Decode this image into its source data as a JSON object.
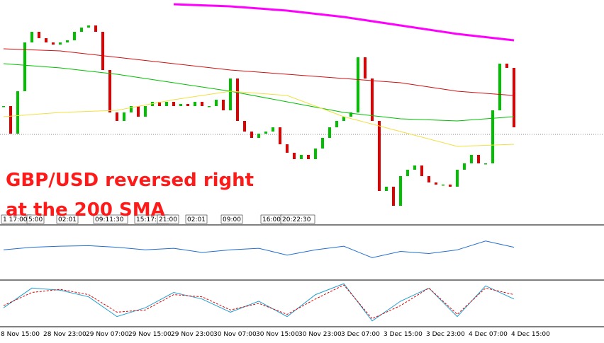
{
  "chart_data": {
    "type": "candlestick",
    "annotation": [
      "GBP/USD reversed right",
      "at the 200 SMA"
    ],
    "ylim": [
      0,
      100
    ],
    "series": [
      {
        "name": "GBP/USD",
        "values": [
          50,
          37,
          57,
          80,
          85,
          82,
          80,
          79,
          80,
          81,
          85,
          87,
          88,
          85,
          67,
          47,
          43,
          47,
          50,
          45,
          50,
          52,
          50,
          52,
          50,
          51,
          50,
          52,
          50,
          50,
          53,
          48,
          63,
          43,
          38,
          35,
          37,
          38,
          40,
          32,
          28,
          25,
          27,
          25,
          30,
          35,
          40,
          43,
          45,
          47,
          73,
          63,
          43,
          10,
          12,
          3,
          17,
          20,
          22,
          17,
          14,
          13,
          13,
          12,
          20,
          23,
          27,
          23,
          23,
          48,
          70,
          68,
          40
        ]
      }
    ],
    "ma_x": [
      0,
      8,
      16,
      24,
      32,
      40,
      48,
      56,
      64,
      72
    ],
    "moving_averages": [
      {
        "color": "#ff00ff",
        "values": [
          null,
          null,
          null,
          98,
          97,
          95,
          92,
          88,
          84,
          81
        ]
      },
      {
        "color": "#d01010",
        "values": [
          77,
          76,
          73,
          70,
          67,
          65,
          63,
          61,
          57,
          55
        ]
      },
      {
        "color": "#00c000",
        "values": [
          70,
          68,
          65,
          61,
          57,
          52,
          47,
          44,
          43,
          45
        ]
      },
      {
        "color": "#f0e040",
        "values": [
          45,
          47,
          48,
          53,
          57,
          55,
          45,
          38,
          31,
          32
        ]
      }
    ],
    "ind_x": [
      0,
      4,
      8,
      12,
      16,
      20,
      24,
      28,
      32,
      36,
      40,
      44,
      48,
      52,
      56,
      60,
      64,
      68,
      72
    ],
    "indicator1": {
      "ylim": [
        0,
        100
      ],
      "color": "#1f6fd0",
      "values": [
        55,
        60,
        62,
        63,
        60,
        55,
        58,
        50,
        55,
        58,
        45,
        55,
        62,
        40,
        52,
        48,
        55,
        72,
        60
      ]
    },
    "indicator2": {
      "ylim": [
        0,
        100
      ],
      "series": [
        {
          "color": "#1f9fd0",
          "values": [
            40,
            85,
            80,
            65,
            20,
            40,
            75,
            60,
            30,
            55,
            20,
            70,
            95,
            10,
            55,
            85,
            20,
            90,
            60
          ]
        },
        {
          "color": "#e00000",
          "values": [
            45,
            75,
            82,
            70,
            30,
            35,
            70,
            65,
            35,
            50,
            25,
            60,
            92,
            15,
            45,
            85,
            25,
            85,
            70
          ]
        }
      ]
    },
    "time_markers": [
      "1 17:00",
      "5:00",
      "02:01",
      "09:11:30",
      "15:17:30",
      "21:00",
      "02:01",
      "09:00",
      "16:00",
      "20:22:30"
    ],
    "x_labels": [
      "8 Nov 15:00",
      "28 Nov 23:00",
      "29 Nov 07:00",
      "29 Nov 15:00",
      "29 Nov 23:00",
      "30 Nov 07:00",
      "30 Nov 15:00",
      "30 Nov 23:00",
      "3 Dec 07:00",
      "3 Dec 15:00",
      "3 Dec 23:00",
      "4 Dec 07:00",
      "4 Dec 15:00"
    ]
  }
}
